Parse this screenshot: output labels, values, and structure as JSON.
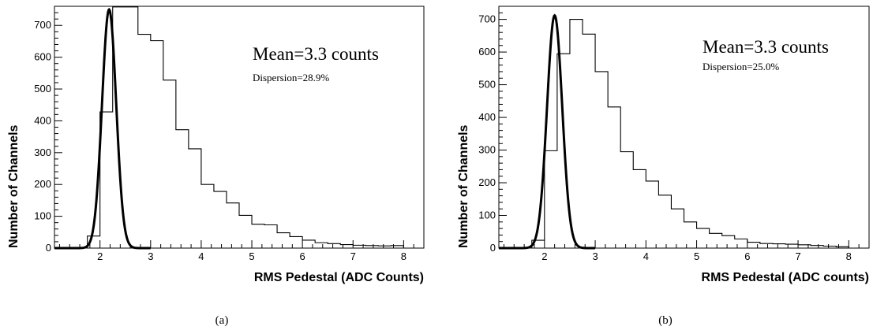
{
  "chart_data": [
    {
      "type": "histogram",
      "panel_label": "(a)",
      "xlabel": "RMS Pedestal (ADC Counts)",
      "ylabel": "Number of Channels",
      "xlim": [
        1.1,
        8.4
      ],
      "ylim": [
        0,
        760
      ],
      "x_ticks": [
        2,
        3,
        4,
        5,
        6,
        7,
        8
      ],
      "y_ticks": [
        0,
        100,
        200,
        300,
        400,
        500,
        600,
        700
      ],
      "annotations": {
        "mean": "Mean=3.3 counts",
        "dispersion": "Dispersion=28.9%"
      },
      "bin_edges": [
        1.75,
        2.0,
        2.25,
        2.5,
        2.75,
        3.0,
        3.25,
        3.5,
        3.75,
        4.0,
        4.25,
        4.5,
        4.75,
        5.0,
        5.25,
        5.5,
        5.75,
        6.0,
        6.25,
        6.5,
        6.75,
        7.0,
        7.25,
        7.5,
        7.75,
        8.0
      ],
      "histogram_counts": [
        38,
        428,
        758,
        758,
        672,
        652,
        528,
        372,
        312,
        200,
        178,
        142,
        103,
        75,
        73,
        48,
        36,
        25,
        17,
        14,
        11,
        9,
        8,
        7,
        8
      ],
      "gaussian_fit": {
        "amplitude": 750,
        "mean": 2.18,
        "sigma": 0.14
      }
    },
    {
      "type": "histogram",
      "panel_label": "(b)",
      "xlabel": "RMS Pedestal (ADC counts)",
      "ylabel": "Number of Channels",
      "xlim": [
        1.1,
        8.4
      ],
      "ylim": [
        0,
        740
      ],
      "x_ticks": [
        2,
        3,
        4,
        5,
        6,
        7,
        8
      ],
      "y_ticks": [
        0,
        100,
        200,
        300,
        400,
        500,
        600,
        700
      ],
      "annotations": {
        "mean": "Mean=3.3 counts",
        "dispersion": "Dispersion=25.0%"
      },
      "bin_edges": [
        1.75,
        2.0,
        2.25,
        2.5,
        2.75,
        3.0,
        3.25,
        3.5,
        3.75,
        4.0,
        4.25,
        4.5,
        4.75,
        5.0,
        5.25,
        5.5,
        5.75,
        6.0,
        6.25,
        6.5,
        6.75,
        7.0,
        7.25,
        7.5,
        7.75,
        8.0
      ],
      "histogram_counts": [
        24,
        298,
        595,
        700,
        655,
        540,
        432,
        295,
        240,
        205,
        162,
        120,
        80,
        60,
        45,
        38,
        28,
        18,
        14,
        13,
        12,
        10,
        8,
        6,
        4
      ],
      "gaussian_fit": {
        "amplitude": 712,
        "mean": 2.2,
        "sigma": 0.15
      }
    }
  ]
}
